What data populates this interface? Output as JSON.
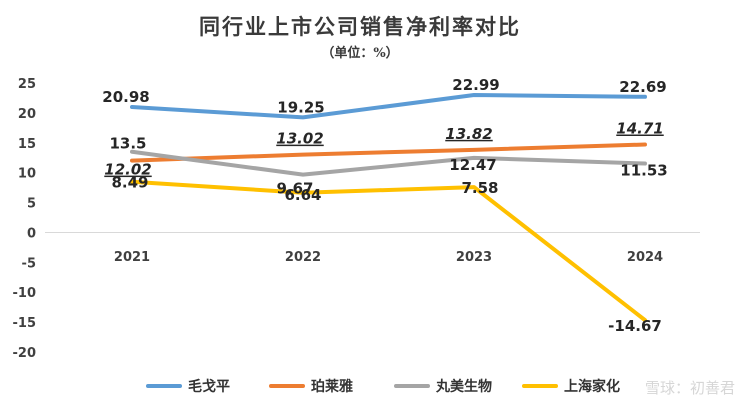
{
  "chart_data": {
    "type": "line",
    "title": "同行业上市公司销售净利率对比",
    "subtitle": "（单位：%）",
    "categories": [
      "2021",
      "2022",
      "2023",
      "2024"
    ],
    "ylim": [
      -20,
      25
    ],
    "yticks": [
      25,
      20,
      15,
      10,
      5,
      0,
      -5,
      -10,
      -15,
      -20
    ],
    "grid": false,
    "legend_position": "bottom",
    "series": [
      {
        "name": "毛戈平",
        "color": "#5b9bd5",
        "values": [
          20.98,
          19.25,
          22.99,
          22.69
        ],
        "labels": [
          "20.98",
          "19.25",
          "22.99",
          "22.69"
        ]
      },
      {
        "name": "珀莱雅",
        "color": "#ed7d31",
        "values": [
          12.02,
          13.02,
          13.82,
          14.71
        ],
        "labels": [
          "12.02",
          "13.02",
          "13.82",
          "14.71"
        ]
      },
      {
        "name": "丸美生物",
        "color": "#a5a5a5",
        "values": [
          13.5,
          9.67,
          12.47,
          11.53
        ],
        "labels": [
          "13.5",
          "9.67",
          "12.47",
          "11.53"
        ]
      },
      {
        "name": "上海家化",
        "color": "#ffc000",
        "values": [
          8.49,
          6.64,
          7.58,
          -14.67
        ],
        "labels": [
          "8.49",
          "6.64",
          "7.58",
          "-14.67"
        ]
      }
    ]
  },
  "watermark": "雪球：初善君"
}
